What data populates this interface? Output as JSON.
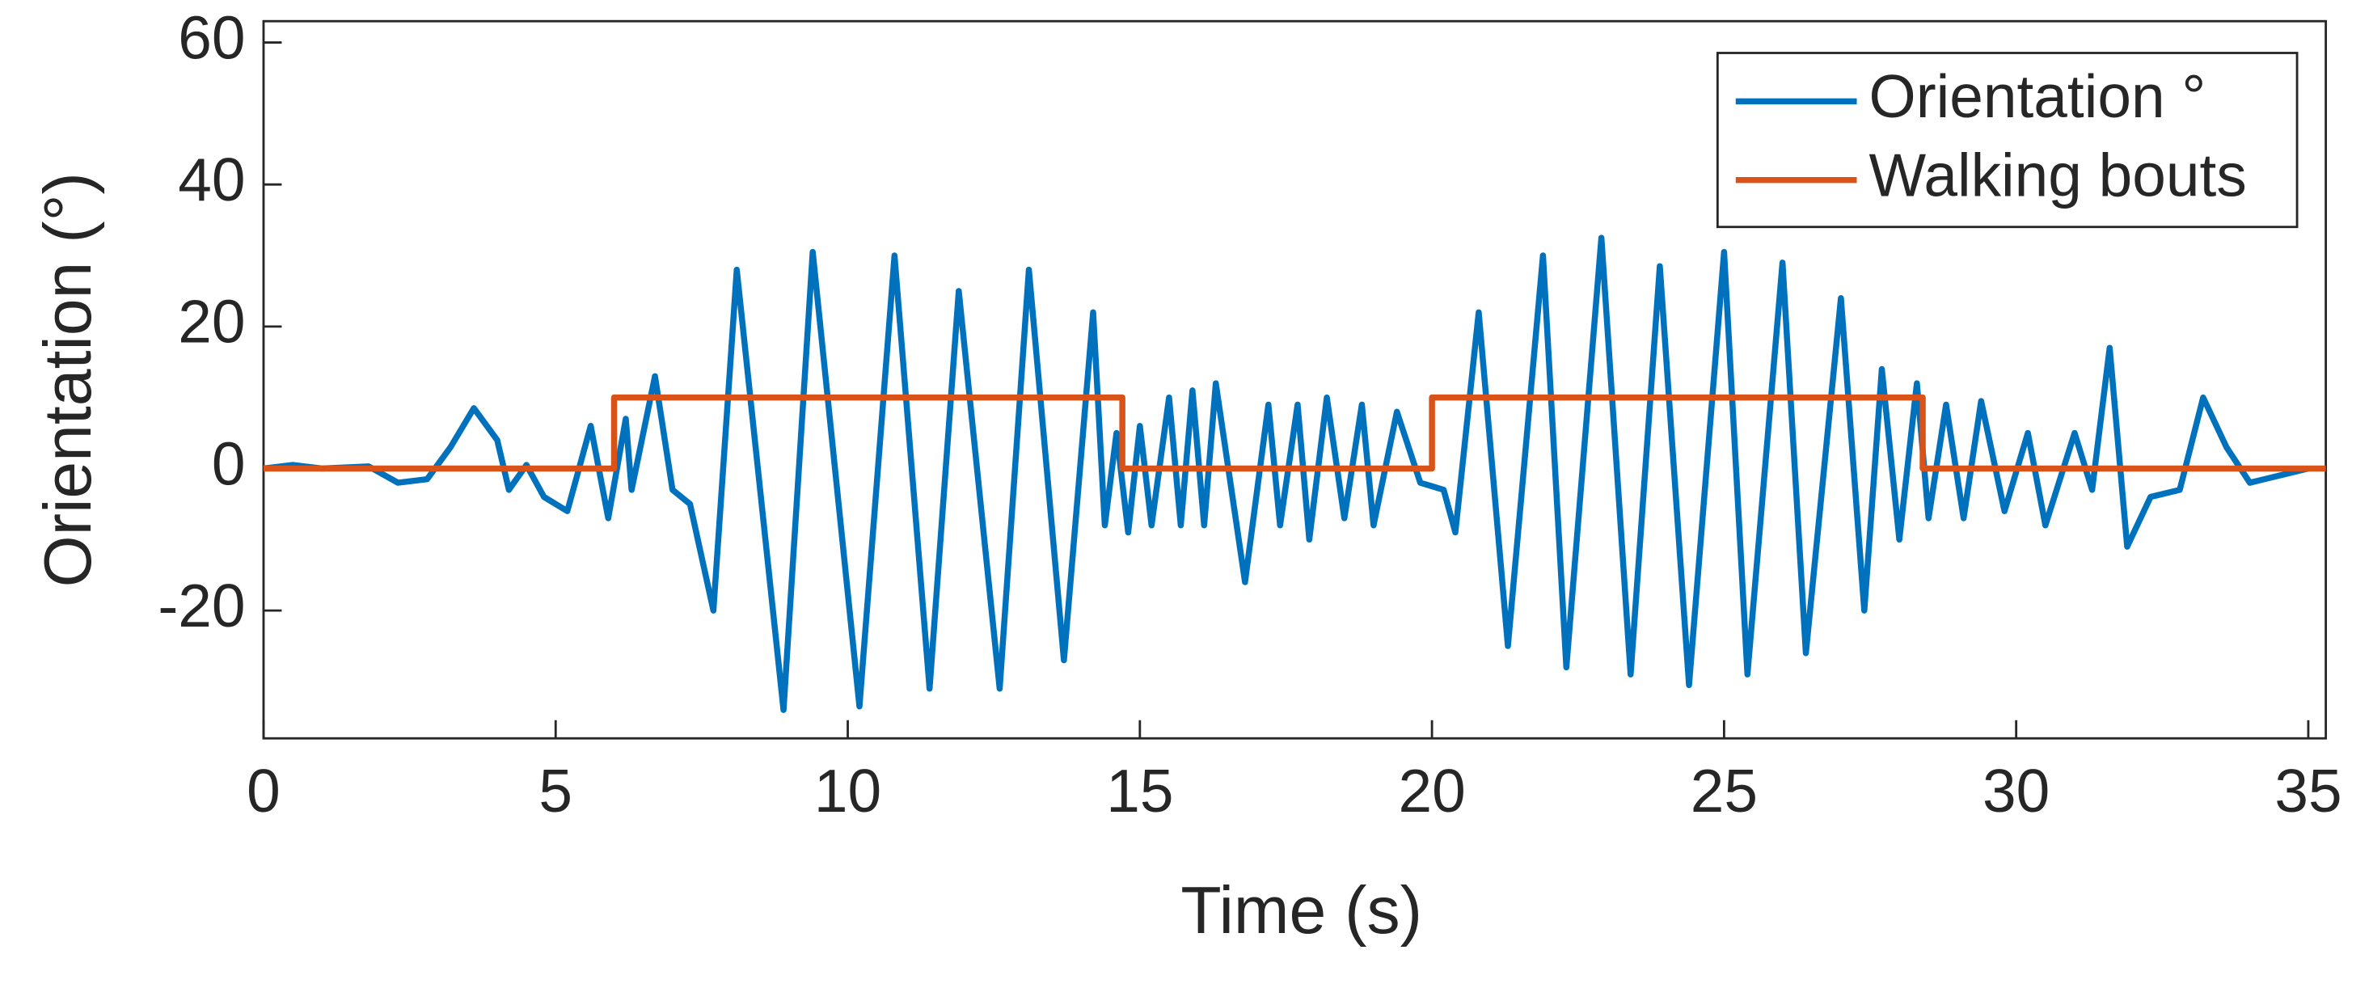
{
  "chart_data": {
    "type": "line",
    "x_label": "Time (s)",
    "y_label": "Orientation (°)",
    "xlim": [
      0,
      35.3
    ],
    "ylim": [
      -38,
      63
    ],
    "xticks": [
      0,
      5,
      10,
      15,
      20,
      25,
      30,
      35
    ],
    "yticks": [
      -20,
      0,
      20,
      40,
      60
    ],
    "grid": false,
    "legend": "upper right",
    "series": [
      {
        "name": "Orientation °",
        "color": "#0072bd",
        "x": [
          0,
          0.5,
          1,
          1.8,
          2.3,
          2.8,
          3.2,
          3.6,
          4,
          4.2,
          4.5,
          4.8,
          5.2,
          5.6,
          5.9,
          6.2,
          6.3,
          6.7,
          7,
          7.3,
          7.7,
          8.1,
          8.9,
          9.4,
          10.2,
          10.8,
          11.4,
          11.9,
          12.6,
          13.1,
          13.7,
          14.2,
          14.4,
          14.6,
          14.8,
          15.0,
          15.2,
          15.5,
          15.7,
          15.9,
          16.1,
          16.3,
          16.8,
          17.2,
          17.4,
          17.7,
          17.9,
          18.2,
          18.5,
          18.8,
          19.0,
          19.4,
          19.8,
          20.2,
          20.4,
          20.8,
          21.3,
          21.9,
          22.3,
          22.9,
          23.4,
          23.9,
          24.4,
          25.0,
          25.4,
          26.0,
          26.4,
          27.0,
          27.4,
          27.7,
          28.0,
          28.3,
          28.5,
          28.8,
          29.1,
          29.4,
          29.8,
          30.2,
          30.5,
          31.0,
          31.3,
          31.6,
          31.9,
          32.3,
          32.8,
          33.2,
          33.6,
          34.0,
          34.5,
          35.0
        ],
        "values": [
          0,
          0.5,
          0,
          0.3,
          -2,
          -1.5,
          3,
          8.5,
          4,
          -3,
          0.5,
          -4,
          -6,
          6,
          -7,
          7,
          -3,
          13,
          -3,
          -5,
          -20,
          28,
          -34,
          30.5,
          -33.5,
          30,
          -31,
          25,
          -31,
          28,
          -27,
          22,
          -8,
          5,
          -9,
          6,
          -8,
          10,
          -8,
          11,
          -8,
          12,
          -16,
          9,
          -8,
          9,
          -10,
          10,
          -7,
          9,
          -8,
          8,
          -2,
          -3,
          -9,
          22,
          -25,
          30,
          -28,
          32.5,
          -29,
          28.5,
          -30.5,
          30.5,
          -29,
          29,
          -26,
          24,
          -20,
          14,
          -10,
          12,
          -7,
          9,
          -7,
          9.5,
          -6,
          5,
          -8,
          5,
          -3,
          17,
          -11,
          -4,
          -3,
          10,
          3,
          -2,
          -1,
          0
        ]
      },
      {
        "name": "Walking bouts",
        "color": "#d95319",
        "x": [
          0,
          6,
          6,
          14.7,
          14.7,
          20,
          20,
          28.4,
          28.4,
          35.3
        ],
        "values": [
          0,
          0,
          10,
          10,
          0,
          0,
          10,
          10,
          0,
          0
        ]
      }
    ]
  }
}
